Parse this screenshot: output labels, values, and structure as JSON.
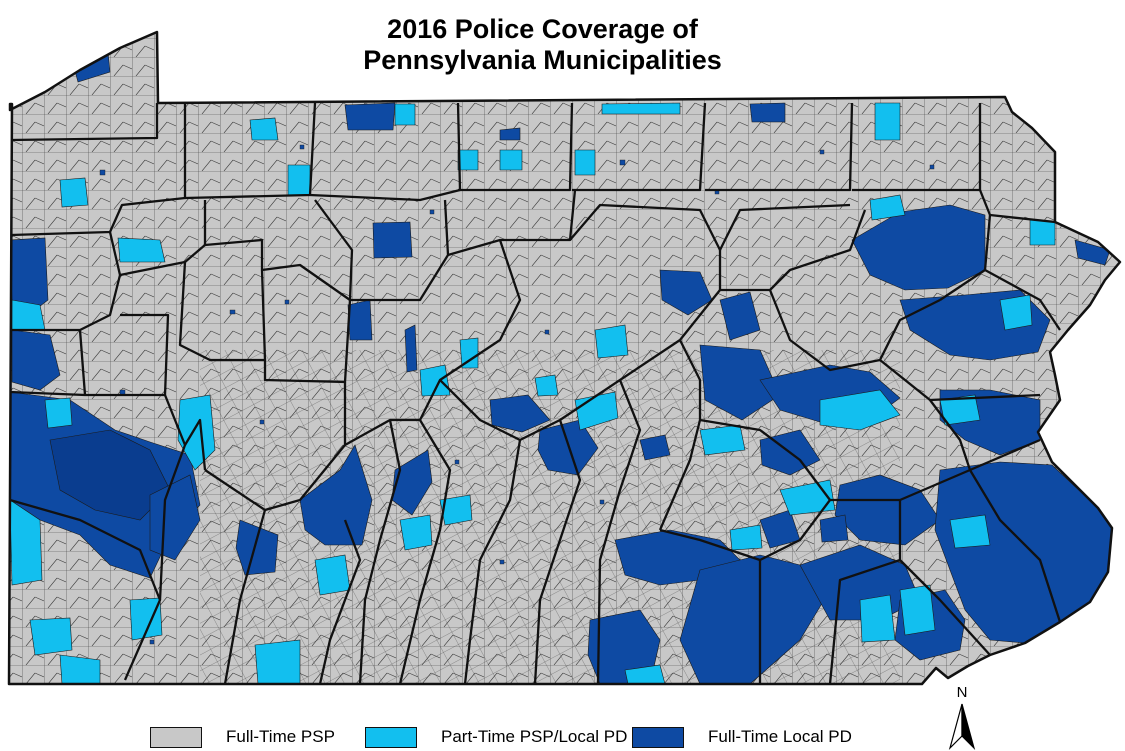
{
  "title_line1": "2016 Police Coverage of",
  "title_line2": "Pennsylvania Municipalities",
  "legend": [
    {
      "label": "Full-Time PSP",
      "color": "#c8c8c8"
    },
    {
      "label": "Part-Time PSP/Local PD",
      "color": "#12bfef"
    },
    {
      "label": "Full-Time Local PD",
      "color": "#0e4aa3"
    }
  ],
  "north_arrow_label": "N",
  "colors": {
    "full_time_psp": "#c8c8c8",
    "part_time": "#12bfef",
    "full_time_local": "#0e4aa3",
    "county_border": "#111111",
    "muni_border": "#3c3c3c"
  }
}
